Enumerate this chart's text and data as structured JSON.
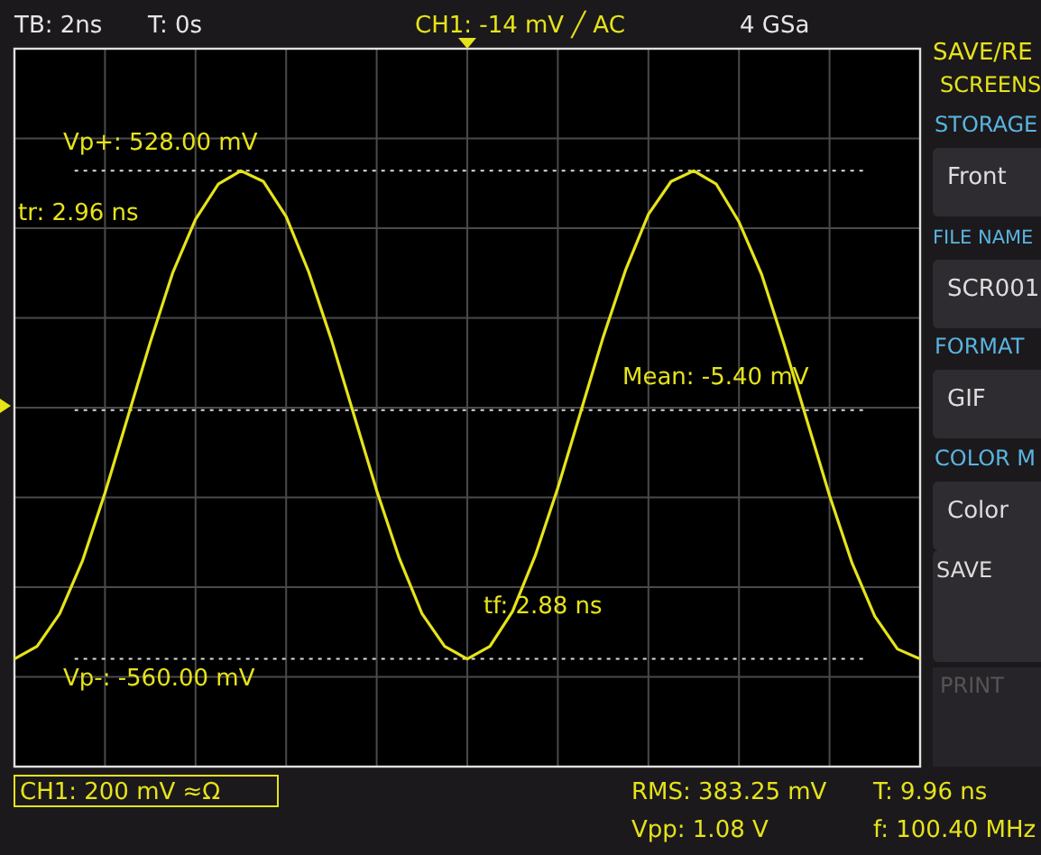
{
  "chart_data": {
    "type": "line",
    "ylim": [
      -800,
      800
    ],
    "grid": true,
    "line_style": "solid",
    "categories": [
      null,
      null,
      null,
      null,
      null,
      null,
      null,
      null,
      null,
      null,
      null,
      null,
      null,
      null,
      null,
      null,
      null,
      null,
      null,
      null,
      null,
      null,
      null,
      null,
      null,
      null,
      null,
      null,
      null,
      null,
      null,
      null,
      null,
      null,
      null,
      null,
      null,
      null,
      null,
      null,
      null
    ],
    "series": [
      {
        "color": "#e6e31a",
        "values": [
          -560,
          -532,
          -459,
          -342,
          -190,
          -22,
          146,
          302,
          420,
          498,
          528,
          504,
          426,
          302,
          151,
          -17,
          -185,
          -336,
          -459,
          -532,
          -560,
          -532,
          -454,
          -330,
          -179,
          -11,
          157,
          308,
          431,
          504,
          528,
          498,
          414,
          297,
          140,
          -28,
          -196,
          -347,
          -465,
          -538,
          -560
        ]
      }
    ],
    "ref_lines": [
      {
        "axis": "y",
        "value": 528,
        "label": "Vp+: 528.00 mV",
        "color": "#dddddd",
        "line_style": "dotted"
      },
      {
        "axis": "y",
        "value": -560,
        "label": "Vp-: -560.00 mV",
        "color": "#dddddd",
        "line_style": "dotted"
      },
      {
        "axis": "y",
        "value": -5.4,
        "label": "Mean: -5.40 mV",
        "color": "#dddddd",
        "line_style": "dotted"
      }
    ],
    "annotations": [
      "tr: 2.96 ns",
      "tf: 2.88 ns",
      "TB: 2ns",
      "T: 0s",
      "CH1: -14 mV ╱ AC",
      "4 GSa",
      "SAVE/RE",
      "SCREENS",
      "STORAGE",
      "Front",
      "FILE NAME",
      "SCR001",
      "FORMAT",
      "GIF",
      "COLOR M",
      "Color",
      "SAVE",
      "PRINT",
      "CH1: 200 mV ≈Ω",
      "RMS: 383.25 mV",
      "Vpp: 1.08 V",
      "T: 9.96 ns",
      "f: 100.40 MHz"
    ]
  }
}
